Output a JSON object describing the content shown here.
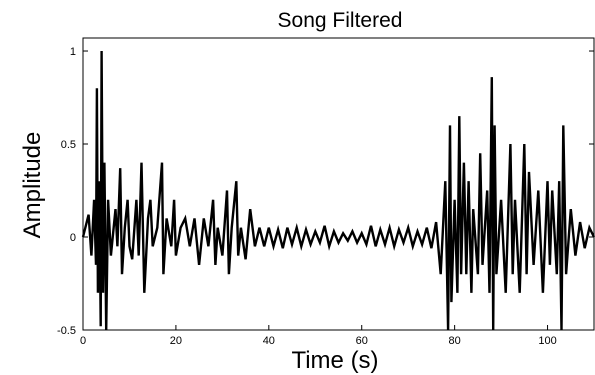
{
  "chart_data": {
    "type": "line",
    "title": "Song Filtered",
    "xlabel": "Time (s)",
    "ylabel": "Amplitude",
    "xlim": [
      0,
      110
    ],
    "ylim": [
      -0.5,
      1.07
    ],
    "x_ticks": [
      "0",
      "20",
      "40",
      "60",
      "80",
      "100"
    ],
    "y_ticks": [
      "-0.5",
      "0",
      "0.5",
      "1"
    ],
    "grid": false,
    "series": [
      {
        "color": "#000000",
        "points": [
          [
            0.0,
            0.0
          ],
          [
            1.2,
            0.12
          ],
          [
            1.8,
            -0.1
          ],
          [
            2.4,
            0.2
          ],
          [
            2.8,
            -0.15
          ],
          [
            3.0,
            0.8
          ],
          [
            3.2,
            -0.3
          ],
          [
            3.5,
            0.3
          ],
          [
            3.8,
            -0.48
          ],
          [
            4.0,
            1.0
          ],
          [
            4.3,
            -0.3
          ],
          [
            4.6,
            0.4
          ],
          [
            5.0,
            -0.5
          ],
          [
            5.4,
            0.2
          ],
          [
            6.0,
            -0.1
          ],
          [
            7.0,
            0.15
          ],
          [
            7.4,
            -0.05
          ],
          [
            8.0,
            0.37
          ],
          [
            8.4,
            -0.2
          ],
          [
            9.0,
            0.05
          ],
          [
            9.6,
            0.2
          ],
          [
            10.0,
            -0.05
          ],
          [
            10.6,
            -0.12
          ],
          [
            11.5,
            0.2
          ],
          [
            12.0,
            -0.1
          ],
          [
            12.6,
            0.4
          ],
          [
            13.2,
            -0.3
          ],
          [
            14.0,
            0.1
          ],
          [
            14.5,
            0.2
          ],
          [
            15.0,
            -0.05
          ],
          [
            16.0,
            0.05
          ],
          [
            17.0,
            0.4
          ],
          [
            17.3,
            -0.2
          ],
          [
            18.0,
            0.1
          ],
          [
            19.0,
            -0.05
          ],
          [
            19.6,
            0.2
          ],
          [
            20.0,
            -0.1
          ],
          [
            21.0,
            0.05
          ],
          [
            22.0,
            0.1
          ],
          [
            23.0,
            -0.05
          ],
          [
            24.0,
            0.1
          ],
          [
            25.0,
            -0.15
          ],
          [
            26.0,
            0.1
          ],
          [
            27.0,
            -0.05
          ],
          [
            28.0,
            0.2
          ],
          [
            28.5,
            -0.15
          ],
          [
            29.0,
            0.05
          ],
          [
            30.0,
            -0.1
          ],
          [
            31.0,
            0.25
          ],
          [
            31.4,
            -0.2
          ],
          [
            32.0,
            0.05
          ],
          [
            33.0,
            0.3
          ],
          [
            33.4,
            -0.1
          ],
          [
            34.0,
            0.05
          ],
          [
            35.0,
            -0.12
          ],
          [
            36.0,
            0.15
          ],
          [
            37.0,
            -0.05
          ],
          [
            38.0,
            0.05
          ],
          [
            39.0,
            -0.05
          ],
          [
            40.0,
            0.05
          ],
          [
            41.0,
            -0.05
          ],
          [
            42.0,
            0.04
          ],
          [
            43.0,
            -0.06
          ],
          [
            44.0,
            0.05
          ],
          [
            45.0,
            -0.04
          ],
          [
            46.0,
            0.05
          ],
          [
            47.0,
            -0.05
          ],
          [
            48.0,
            0.04
          ],
          [
            49.0,
            -0.04
          ],
          [
            50.0,
            0.03
          ],
          [
            51.0,
            -0.03
          ],
          [
            52.0,
            0.06
          ],
          [
            53.0,
            -0.05
          ],
          [
            54.0,
            0.03
          ],
          [
            55.0,
            -0.03
          ],
          [
            56.0,
            0.02
          ],
          [
            57.0,
            -0.02
          ],
          [
            58.0,
            0.03
          ],
          [
            59.0,
            -0.03
          ],
          [
            60.0,
            0.02
          ],
          [
            61.0,
            -0.04
          ],
          [
            62.0,
            0.06
          ],
          [
            63.0,
            -0.05
          ],
          [
            64.0,
            0.04
          ],
          [
            65.0,
            -0.04
          ],
          [
            66.0,
            0.05
          ],
          [
            67.0,
            -0.05
          ],
          [
            68.0,
            0.04
          ],
          [
            69.0,
            -0.03
          ],
          [
            70.0,
            0.05
          ],
          [
            71.0,
            -0.05
          ],
          [
            72.0,
            0.03
          ],
          [
            73.0,
            -0.04
          ],
          [
            74.0,
            0.05
          ],
          [
            75.0,
            -0.06
          ],
          [
            76.0,
            0.08
          ],
          [
            77.0,
            -0.2
          ],
          [
            78.0,
            0.3
          ],
          [
            78.6,
            -0.5
          ],
          [
            79.0,
            0.6
          ],
          [
            79.3,
            -0.35
          ],
          [
            80.0,
            0.2
          ],
          [
            80.6,
            -0.3
          ],
          [
            81.0,
            0.65
          ],
          [
            81.4,
            -0.2
          ],
          [
            82.0,
            0.4
          ],
          [
            82.5,
            -0.2
          ],
          [
            83.0,
            0.3
          ],
          [
            83.6,
            -0.3
          ],
          [
            84.0,
            0.15
          ],
          [
            85.0,
            -0.2
          ],
          [
            85.5,
            0.45
          ],
          [
            86.0,
            -0.15
          ],
          [
            87.0,
            0.25
          ],
          [
            87.5,
            -0.3
          ],
          [
            88.0,
            0.86
          ],
          [
            88.3,
            -0.5
          ],
          [
            88.6,
            0.6
          ],
          [
            89.0,
            -0.2
          ],
          [
            90.0,
            0.2
          ],
          [
            91.0,
            -0.3
          ],
          [
            92.0,
            0.5
          ],
          [
            92.5,
            -0.2
          ],
          [
            93.0,
            0.2
          ],
          [
            94.0,
            -0.3
          ],
          [
            95.0,
            0.5
          ],
          [
            95.5,
            -0.2
          ],
          [
            96.0,
            0.35
          ],
          [
            97.0,
            -0.15
          ],
          [
            98.0,
            0.25
          ],
          [
            99.0,
            -0.3
          ],
          [
            100.0,
            0.3
          ],
          [
            100.5,
            -0.15
          ],
          [
            101.0,
            0.25
          ],
          [
            102.0,
            -0.2
          ],
          [
            102.5,
            0.3
          ],
          [
            103.0,
            -0.5
          ],
          [
            103.4,
            0.6
          ],
          [
            104.0,
            -0.2
          ],
          [
            105.0,
            0.15
          ],
          [
            106.0,
            -0.1
          ],
          [
            107.0,
            0.08
          ],
          [
            108.0,
            -0.06
          ],
          [
            109.0,
            0.05
          ],
          [
            110.0,
            0.0
          ]
        ]
      }
    ]
  }
}
